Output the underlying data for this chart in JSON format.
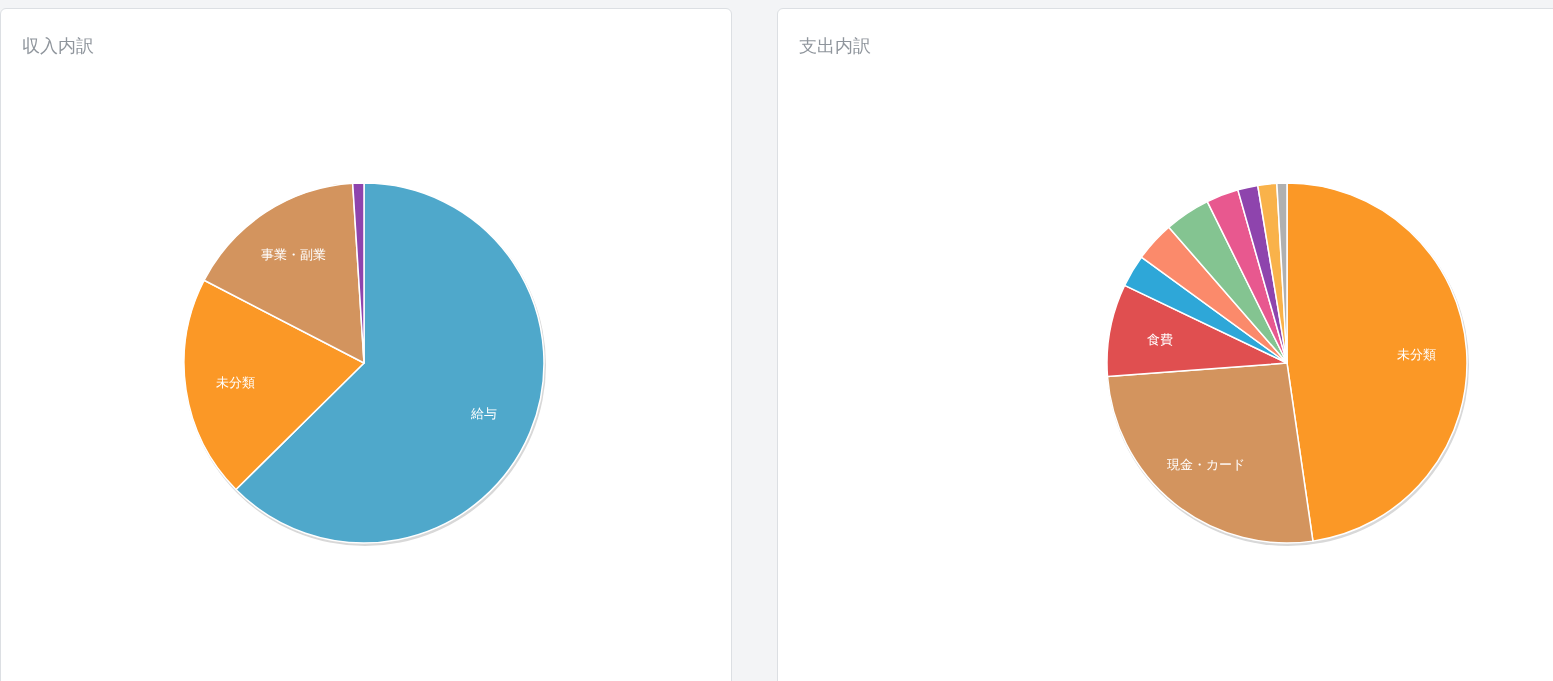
{
  "chart_data": [
    {
      "type": "pie",
      "title": "収入内訳",
      "categories": [
        "給与",
        "未分類",
        "事業・副業",
        null
      ],
      "values": [
        62.6,
        20.0,
        16.4,
        1.0
      ],
      "colors": [
        "#4fa8cb",
        "#fb9826",
        "#d3945e",
        "#8e44ad"
      ]
    },
    {
      "type": "pie",
      "title": "支出内訳",
      "categories": [
        "未分類",
        "現金・カード",
        "食費",
        null,
        null,
        null,
        null,
        null,
        null,
        null
      ],
      "values": [
        47.7,
        26.1,
        8.3,
        2.9,
        3.6,
        4.1,
        2.9,
        1.8,
        1.7,
        0.9
      ],
      "colors": [
        "#fb9826",
        "#d3945e",
        "#e04f50",
        "#2ea7d8",
        "#fb8a6b",
        "#84c491",
        "#e8588f",
        "#8e44ad",
        "#f9b24a",
        "#b0b0b0"
      ]
    }
  ]
}
